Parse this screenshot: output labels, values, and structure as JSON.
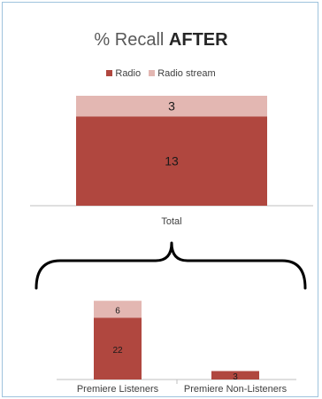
{
  "title": {
    "text": "% Recall ",
    "bold": "AFTER"
  },
  "colors": {
    "radio": "#b0473f",
    "radio_stream": "#e3b7b2",
    "axis": "#bfbfbf",
    "frame": "#9fc3dd",
    "label": "#404040",
    "brace": "#000000"
  },
  "chart_data": [
    {
      "type": "bar",
      "stacked": true,
      "categories": [
        "Total"
      ],
      "series": [
        {
          "name": "Radio",
          "values": [
            13
          ]
        },
        {
          "name": "Radio stream",
          "values": [
            3
          ]
        }
      ],
      "legend": "top-center",
      "grid": false
    },
    {
      "type": "bar",
      "stacked": true,
      "categories": [
        "Premiere Listeners",
        "Premiere Non-Listeners"
      ],
      "series": [
        {
          "name": "Radio",
          "values": [
            22,
            3
          ]
        },
        {
          "name": "Radio stream",
          "values": [
            6,
            0
          ]
        }
      ],
      "grid": false
    }
  ]
}
